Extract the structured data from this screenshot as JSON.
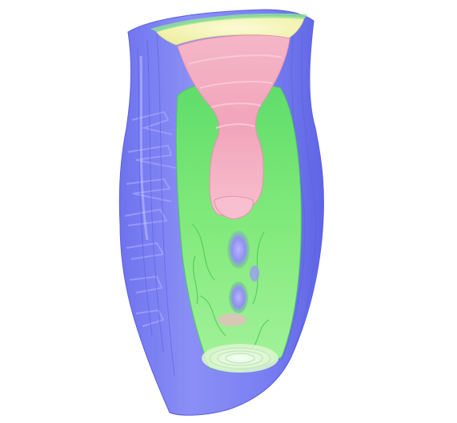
{
  "figure": {
    "kind": "volumetric-isosurface-cutaway",
    "background_color": "#ffffff",
    "palette": {
      "outer_shell": "#7f86f2",
      "outer_shell_dark": "#5d63e6",
      "outer_shell_light": "#a7abff",
      "mid_shell": "#69e26e",
      "mid_shell_light": "#b8f6a5",
      "rim_yellow": "#f6f5bd",
      "core_pink": "#f3a9be",
      "core_pink_light": "#f9c4d2",
      "inner_blue": "#8e91ee",
      "highlight": "#ffffff"
    }
  }
}
